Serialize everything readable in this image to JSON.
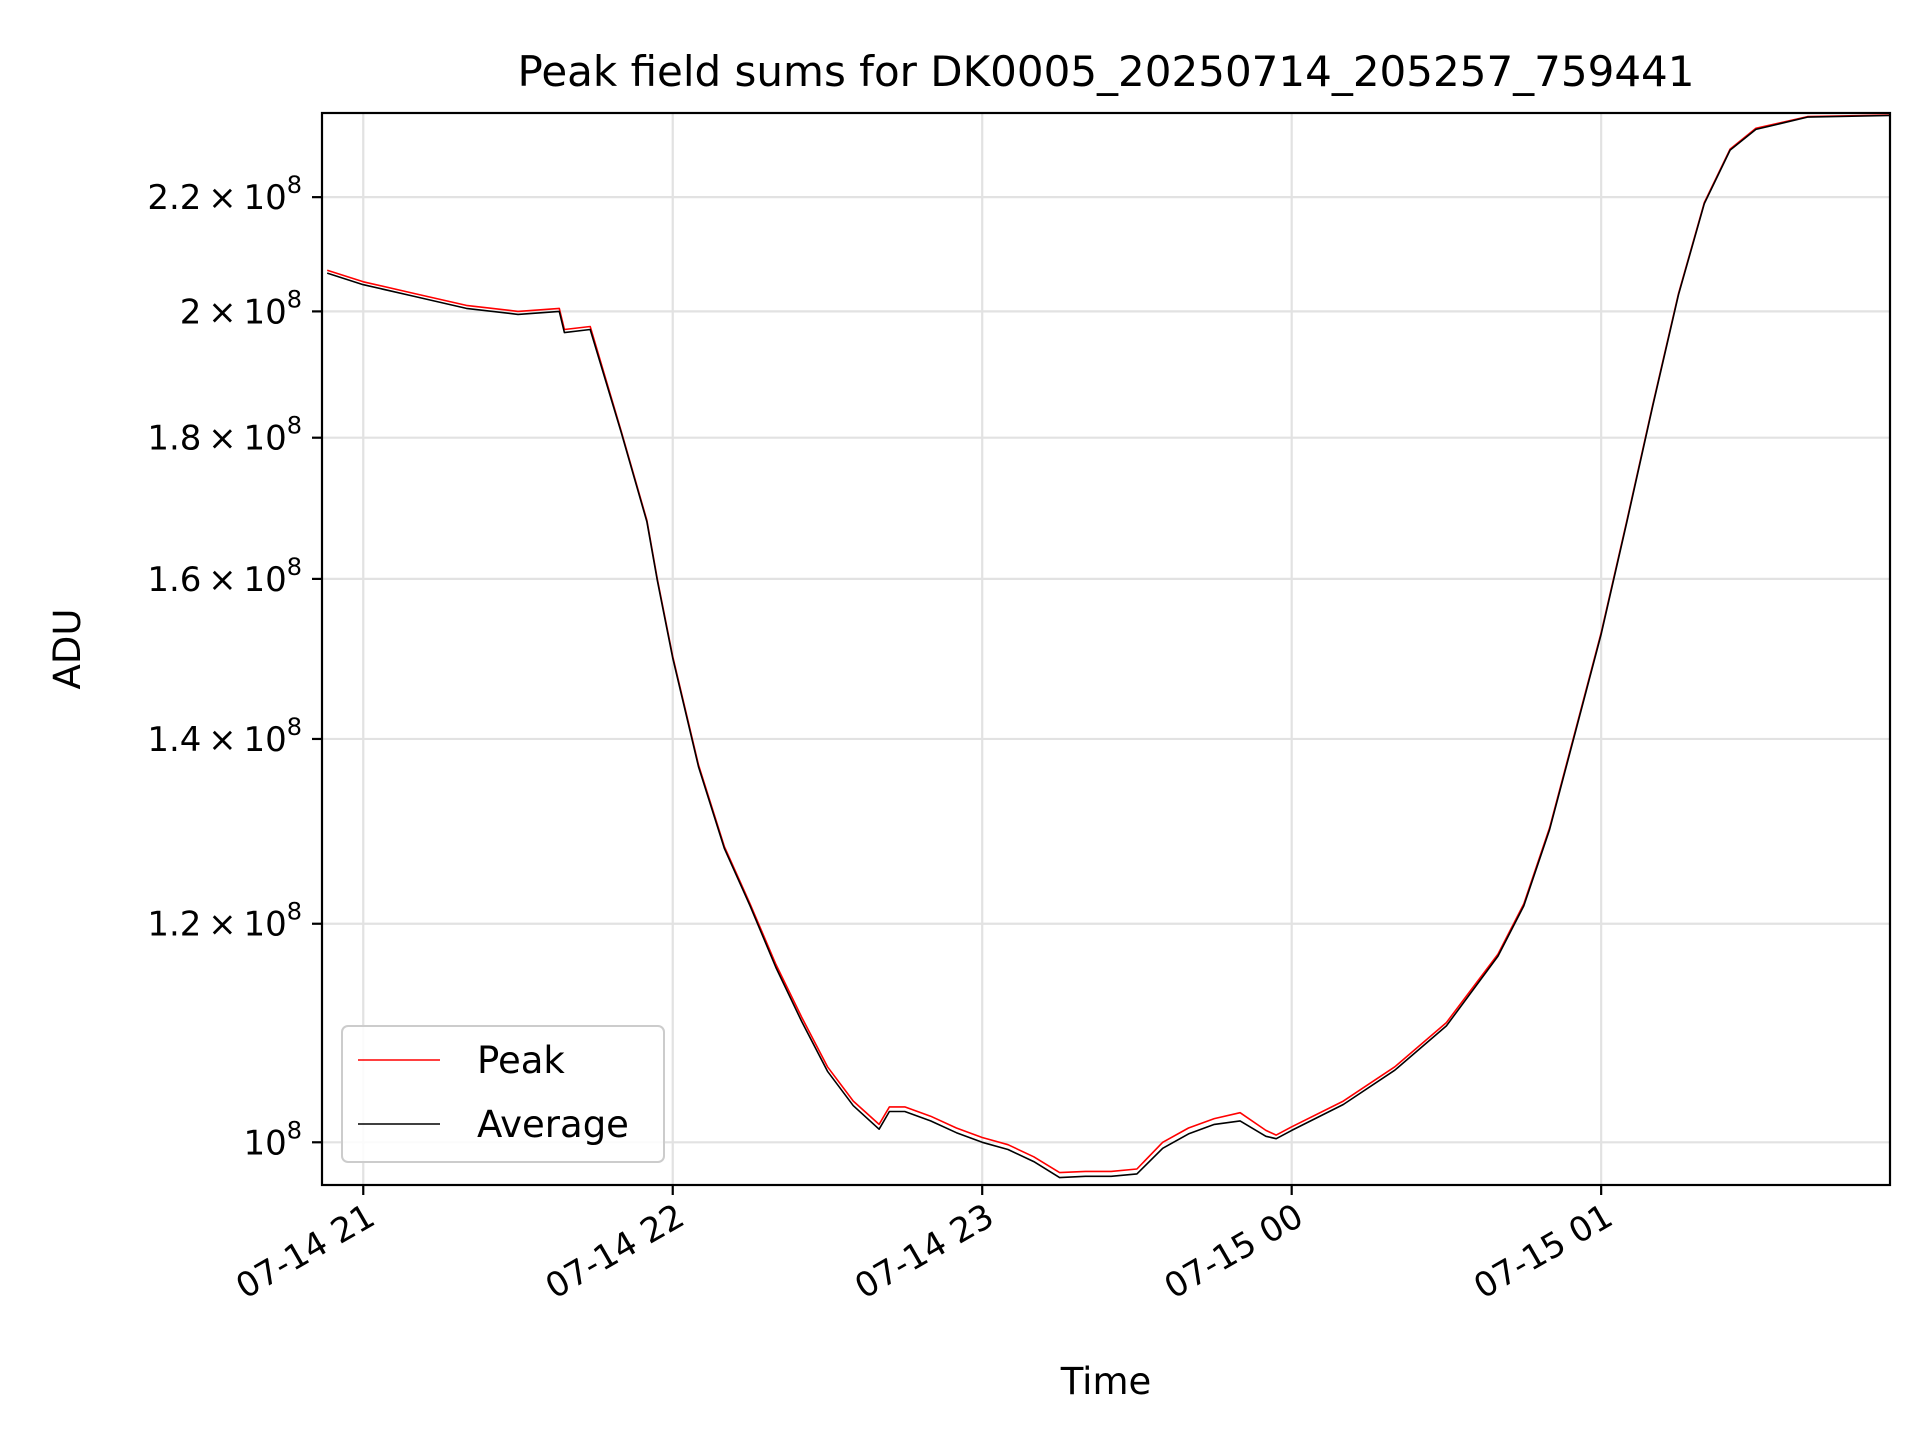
{
  "chart_data": {
    "type": "line",
    "title": "Peak field sums for DK0005_20250714_205257_759441",
    "xlabel": "Time",
    "ylabel": "ADU",
    "x_ticks": [
      "07-14 21",
      "07-14 22",
      "07-14 23",
      "07-15 00",
      "07-15 01"
    ],
    "y_ticks": [
      {
        "value": 100000000,
        "mantissa": "",
        "exp": "8"
      },
      {
        "value": 120000000,
        "mantissa": "1.2",
        "exp": "8"
      },
      {
        "value": 140000000,
        "mantissa": "1.4",
        "exp": "8"
      },
      {
        "value": 160000000,
        "mantissa": "1.6",
        "exp": "8"
      },
      {
        "value": 180000000,
        "mantissa": "1.8",
        "exp": "8"
      },
      {
        "value": 200000000,
        "mantissa": "2",
        "exp": "8"
      },
      {
        "value": 220000000,
        "mantissa": "2.2",
        "exp": "8"
      }
    ],
    "x_range": [
      "2025-07-14 20:52",
      "2025-07-15 01:56"
    ],
    "y_range": [
      96500000,
      236000000
    ],
    "y_scale": "log",
    "grid": true,
    "legend_position": "lower-left",
    "series": [
      {
        "name": "Peak",
        "color": "#ff0000",
        "x": [
          "2025-07-14 20:53",
          "2025-07-14 21:00",
          "2025-07-14 21:10",
          "2025-07-14 21:20",
          "2025-07-14 21:30",
          "2025-07-14 21:38",
          "2025-07-14 21:39",
          "2025-07-14 21:44",
          "2025-07-14 21:50",
          "2025-07-14 21:55",
          "2025-07-14 21:57",
          "2025-07-14 22:00",
          "2025-07-14 22:05",
          "2025-07-14 22:10",
          "2025-07-14 22:15",
          "2025-07-14 22:20",
          "2025-07-14 22:25",
          "2025-07-14 22:30",
          "2025-07-14 22:35",
          "2025-07-14 22:40",
          "2025-07-14 22:42",
          "2025-07-14 22:45",
          "2025-07-14 22:50",
          "2025-07-14 22:55",
          "2025-07-14 23:00",
          "2025-07-14 23:05",
          "2025-07-14 23:10",
          "2025-07-14 23:15",
          "2025-07-14 23:20",
          "2025-07-14 23:25",
          "2025-07-14 23:30",
          "2025-07-14 23:35",
          "2025-07-14 23:40",
          "2025-07-14 23:45",
          "2025-07-14 23:50",
          "2025-07-14 23:55",
          "2025-07-14 23:57",
          "2025-07-15 00:00",
          "2025-07-15 00:10",
          "2025-07-15 00:20",
          "2025-07-15 00:30",
          "2025-07-15 00:40",
          "2025-07-15 00:45",
          "2025-07-15 00:50",
          "2025-07-15 00:55",
          "2025-07-15 01:00",
          "2025-07-15 01:05",
          "2025-07-15 01:10",
          "2025-07-15 01:15",
          "2025-07-15 01:20",
          "2025-07-15 01:25",
          "2025-07-15 01:30",
          "2025-07-15 01:40",
          "2025-07-15 01:56"
        ],
        "y": [
          207000000,
          205000000,
          203000000,
          201000000,
          200000000,
          200500000,
          197000000,
          197500000,
          181000000,
          168000000,
          160000000,
          150000000,
          137000000,
          128000000,
          122000000,
          116000000,
          111000000,
          106500000,
          103500000,
          101500000,
          103000000,
          103000000,
          102200000,
          101200000,
          100400000,
          99800000,
          98800000,
          97500000,
          97600000,
          97600000,
          97800000,
          100000000,
          101200000,
          102000000,
          102500000,
          101000000,
          100600000,
          101300000,
          103500000,
          106500000,
          110500000,
          117000000,
          122000000,
          130000000,
          141000000,
          153000000,
          168000000,
          185000000,
          203000000,
          219000000,
          229000000,
          233000000,
          235300000,
          235600000
        ]
      },
      {
        "name": "Average",
        "color": "#000000",
        "x": [
          "2025-07-14 20:53",
          "2025-07-14 21:00",
          "2025-07-14 21:10",
          "2025-07-14 21:20",
          "2025-07-14 21:30",
          "2025-07-14 21:38",
          "2025-07-14 21:39",
          "2025-07-14 21:44",
          "2025-07-14 21:50",
          "2025-07-14 21:55",
          "2025-07-14 21:57",
          "2025-07-14 22:00",
          "2025-07-14 22:05",
          "2025-07-14 22:10",
          "2025-07-14 22:15",
          "2025-07-14 22:20",
          "2025-07-14 22:25",
          "2025-07-14 22:30",
          "2025-07-14 22:35",
          "2025-07-14 22:40",
          "2025-07-14 22:42",
          "2025-07-14 22:45",
          "2025-07-14 22:50",
          "2025-07-14 22:55",
          "2025-07-14 23:00",
          "2025-07-14 23:05",
          "2025-07-14 23:10",
          "2025-07-14 23:15",
          "2025-07-14 23:20",
          "2025-07-14 23:25",
          "2025-07-14 23:30",
          "2025-07-14 23:35",
          "2025-07-14 23:40",
          "2025-07-14 23:45",
          "2025-07-14 23:50",
          "2025-07-14 23:55",
          "2025-07-14 23:57",
          "2025-07-15 00:00",
          "2025-07-15 00:10",
          "2025-07-15 00:20",
          "2025-07-15 00:30",
          "2025-07-15 00:40",
          "2025-07-15 00:45",
          "2025-07-15 00:50",
          "2025-07-15 00:55",
          "2025-07-15 01:00",
          "2025-07-15 01:05",
          "2025-07-15 01:10",
          "2025-07-15 01:15",
          "2025-07-15 01:20",
          "2025-07-15 01:25",
          "2025-07-15 01:30",
          "2025-07-15 01:40",
          "2025-07-15 01:56"
        ],
        "y": [
          206500000,
          204500000,
          202500000,
          200500000,
          199500000,
          200000000,
          196500000,
          197000000,
          180800000,
          167800000,
          159800000,
          149800000,
          136800000,
          127800000,
          121800000,
          115700000,
          110600000,
          106100000,
          103100000,
          101100000,
          102600000,
          102600000,
          101800000,
          100800000,
          100000000,
          99400000,
          98400000,
          97100000,
          97200000,
          97200000,
          97400000,
          99500000,
          100700000,
          101500000,
          101800000,
          100500000,
          100300000,
          101000000,
          103200000,
          106200000,
          110200000,
          116800000,
          121800000,
          129800000,
          140800000,
          152800000,
          167800000,
          184800000,
          202800000,
          218800000,
          228800000,
          232800000,
          235200000,
          235500000
        ]
      }
    ]
  }
}
